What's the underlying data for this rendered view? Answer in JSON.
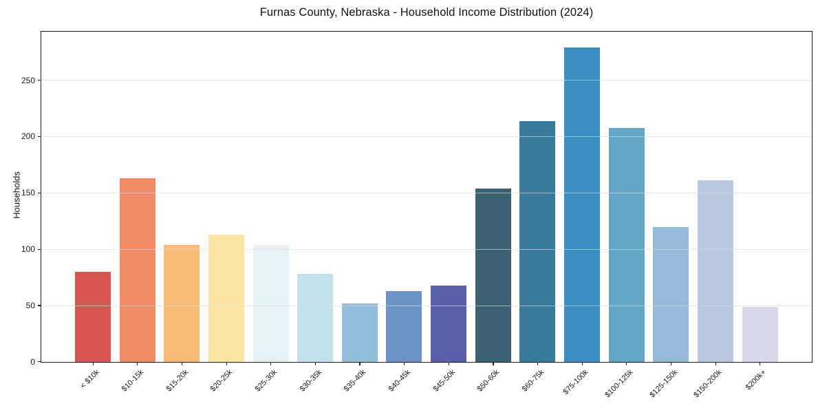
{
  "chart_data": {
    "type": "bar",
    "title": "Furnas County, Nebraska - Household Income Distribution (2024)",
    "xlabel": "",
    "ylabel": "Households",
    "categories": [
      "< $10k",
      "$10-15k",
      "$15-20k",
      "$20-25k",
      "$25-30k",
      "$30-35k",
      "$35-40k",
      "$40-45k",
      "$45-50k",
      "$50-60k",
      "$60-75k",
      "$75-100k",
      "$100-125k",
      "$125-150k",
      "$150-200k",
      "$200k+"
    ],
    "values": [
      80,
      163,
      104,
      113,
      104,
      78,
      52,
      63,
      68,
      154,
      214,
      279,
      208,
      120,
      161,
      49
    ],
    "bar_colors": [
      "#d6574f",
      "#f28b67",
      "#f9bc76",
      "#fce4a2",
      "#e7f2f7",
      "#c3e0ed",
      "#93bedb",
      "#6b93c6",
      "#5b5fa9",
      "#3a6273",
      "#3a7a9c",
      "#3a8ec2",
      "#63a6c8",
      "#95bad9",
      "#bac9e0",
      "#d8d9e8"
    ],
    "yticks": [
      0,
      50,
      100,
      150,
      200,
      250
    ],
    "ylim": [
      0,
      293
    ],
    "grid": "horizontal-only",
    "legend": "none",
    "background_color": "#ffffff",
    "axis_color": "#1a1a1a",
    "gridline_color": "#dddddd",
    "x_tick_rotation_deg": 45
  }
}
